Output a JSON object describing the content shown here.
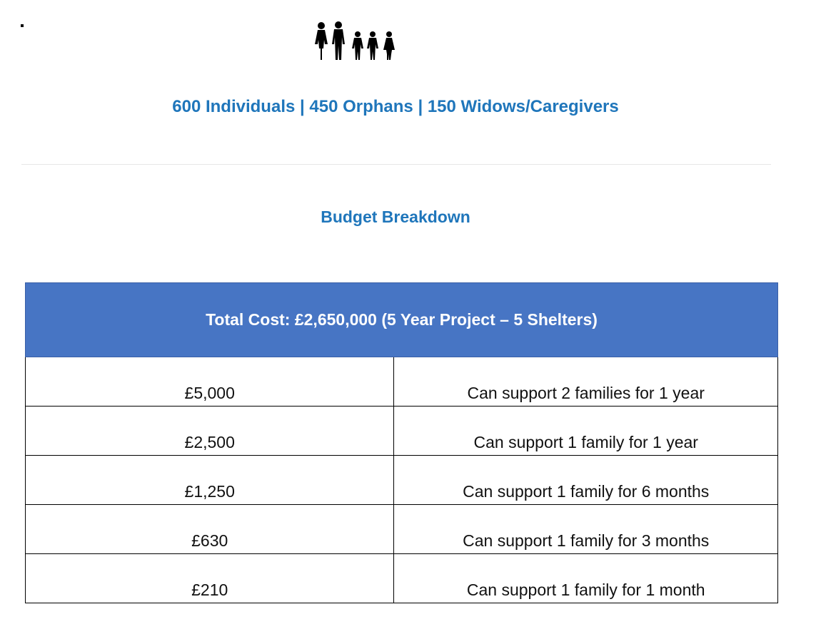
{
  "stats": {
    "text": "600 Individuals | 450 Orphans | 150 Widows/Caregivers"
  },
  "budget": {
    "title": "Budget Breakdown",
    "total_cost": "Total Cost: £2,650,000 (5 Year Project – 5 Shelters)",
    "rows": [
      {
        "amount": "£5,000",
        "description": "Can support 2 families for 1 year"
      },
      {
        "amount": "£2,500",
        "description": "Can support 1 family for 1 year"
      },
      {
        "amount": "£1,250",
        "description": "Can support 1 family for 6 months"
      },
      {
        "amount": "£630",
        "description": "Can support 1 family for 3 months"
      },
      {
        "amount": "£210",
        "description": "Can support 1 family for 1 month"
      }
    ]
  },
  "icons": {
    "family": "family-icon"
  },
  "colors": {
    "heading_blue": "#1f76bb",
    "table_header_bg": "#4775c4"
  }
}
